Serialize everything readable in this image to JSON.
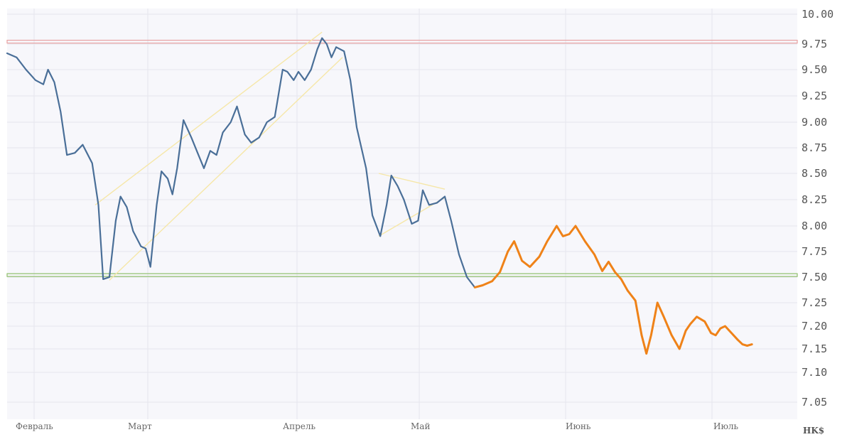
{
  "chart_data": {
    "type": "line",
    "unit_label": "HK$",
    "ylim": [
      7.05,
      10.0
    ],
    "y_ticks": [
      {
        "label": "10.00",
        "value": 10.0
      },
      {
        "label": "9.75",
        "value": 9.75
      },
      {
        "label": "9.50",
        "value": 9.5
      },
      {
        "label": "9.25",
        "value": 9.25
      },
      {
        "label": "9.00",
        "value": 9.0
      },
      {
        "label": "8.75",
        "value": 8.75
      },
      {
        "label": "8.50",
        "value": 8.5
      },
      {
        "label": "8.25",
        "value": 8.25
      },
      {
        "label": "8.00",
        "value": 8.0
      },
      {
        "label": "7.75",
        "value": 7.75
      },
      {
        "label": "7.50",
        "value": 7.5
      },
      {
        "label": "7.25",
        "value": 7.25
      },
      {
        "label": "7.20",
        "value": 7.2
      },
      {
        "label": "7.15",
        "value": 7.15
      },
      {
        "label": "7.10",
        "value": 7.1
      },
      {
        "label": "7.05",
        "value": 7.05
      }
    ],
    "x_ticks": [
      "Февраль",
      "Март",
      "Апрель",
      "Май",
      "Июнь",
      "Июль"
    ],
    "grid": true,
    "colors": {
      "historical": "#4a6f98",
      "forecast": "#ef8218",
      "resistance": "#e8a0a0",
      "support": "#8fbf6a",
      "channel": "#f6e7a8",
      "grid": "#e6e6ee",
      "background": "#f7f7fb"
    },
    "resistance_level": 9.77,
    "support_level": 7.52,
    "series": [
      {
        "role": "historical",
        "points": [
          [
            0.0,
            9.66
          ],
          [
            1.2,
            9.62
          ],
          [
            2.4,
            9.5
          ],
          [
            3.6,
            9.4
          ],
          [
            4.6,
            9.36
          ],
          [
            5.2,
            9.5
          ],
          [
            6.0,
            9.38
          ],
          [
            6.8,
            9.1
          ],
          [
            7.6,
            8.68
          ],
          [
            8.6,
            8.7
          ],
          [
            9.6,
            8.78
          ],
          [
            10.8,
            8.6
          ],
          [
            11.6,
            8.2
          ],
          [
            12.2,
            7.48
          ],
          [
            13.0,
            7.5
          ],
          [
            13.8,
            8.05
          ],
          [
            14.4,
            8.28
          ],
          [
            15.2,
            8.18
          ],
          [
            16.0,
            7.95
          ],
          [
            17.0,
            7.8
          ],
          [
            17.6,
            7.78
          ],
          [
            18.2,
            7.6
          ],
          [
            19.0,
            8.2
          ],
          [
            19.6,
            8.52
          ],
          [
            20.4,
            8.45
          ],
          [
            21.0,
            8.3
          ],
          [
            21.6,
            8.55
          ],
          [
            22.4,
            9.02
          ],
          [
            23.4,
            8.85
          ],
          [
            24.2,
            8.7
          ],
          [
            25.0,
            8.55
          ],
          [
            25.8,
            8.72
          ],
          [
            26.6,
            8.68
          ],
          [
            27.4,
            8.9
          ],
          [
            28.4,
            9.0
          ],
          [
            29.2,
            9.15
          ],
          [
            30.2,
            8.88
          ],
          [
            31.0,
            8.8
          ],
          [
            32.0,
            8.85
          ],
          [
            33.0,
            9.0
          ],
          [
            34.0,
            9.05
          ],
          [
            35.0,
            9.5
          ],
          [
            35.6,
            9.48
          ],
          [
            36.4,
            9.4
          ],
          [
            37.0,
            9.48
          ],
          [
            37.8,
            9.4
          ],
          [
            38.6,
            9.5
          ],
          [
            39.4,
            9.7
          ],
          [
            40.0,
            9.8
          ],
          [
            40.6,
            9.75
          ],
          [
            41.2,
            9.62
          ],
          [
            41.8,
            9.72
          ],
          [
            42.8,
            9.68
          ],
          [
            43.6,
            9.4
          ],
          [
            44.4,
            8.95
          ],
          [
            45.6,
            8.55
          ],
          [
            46.4,
            8.1
          ],
          [
            47.4,
            7.9
          ],
          [
            48.2,
            8.2
          ],
          [
            48.8,
            8.48
          ],
          [
            49.6,
            8.38
          ],
          [
            50.4,
            8.25
          ],
          [
            51.4,
            8.02
          ],
          [
            52.2,
            8.05
          ],
          [
            52.8,
            8.34
          ],
          [
            53.6,
            8.2
          ],
          [
            54.6,
            8.22
          ],
          [
            55.6,
            8.28
          ],
          [
            56.4,
            8.05
          ],
          [
            57.4,
            7.72
          ],
          [
            58.4,
            7.5
          ],
          [
            59.4,
            7.4
          ]
        ]
      },
      {
        "role": "forecast",
        "points": [
          [
            59.4,
            7.4
          ],
          [
            60.4,
            7.42
          ],
          [
            61.6,
            7.46
          ],
          [
            62.6,
            7.55
          ],
          [
            63.6,
            7.75
          ],
          [
            64.4,
            7.85
          ],
          [
            65.4,
            7.66
          ],
          [
            66.4,
            7.6
          ],
          [
            67.6,
            7.7
          ],
          [
            68.6,
            7.85
          ],
          [
            69.8,
            8.0
          ],
          [
            70.6,
            7.9
          ],
          [
            71.4,
            7.92
          ],
          [
            72.2,
            8.0
          ],
          [
            73.4,
            7.85
          ],
          [
            74.6,
            7.72
          ],
          [
            75.6,
            7.56
          ],
          [
            76.4,
            7.65
          ],
          [
            77.2,
            7.55
          ],
          [
            78.0,
            7.48
          ],
          [
            78.8,
            7.37
          ],
          [
            79.8,
            7.27
          ],
          [
            80.6,
            7.18
          ],
          [
            81.2,
            7.14
          ],
          [
            81.8,
            7.18
          ],
          [
            82.6,
            7.25
          ],
          [
            83.4,
            7.22
          ],
          [
            84.4,
            7.18
          ],
          [
            85.4,
            7.15
          ],
          [
            86.2,
            7.19
          ],
          [
            86.8,
            7.205
          ],
          [
            87.6,
            7.22
          ],
          [
            88.6,
            7.21
          ],
          [
            89.4,
            7.185
          ],
          [
            90.0,
            7.18
          ],
          [
            90.6,
            7.195
          ],
          [
            91.2,
            7.2
          ],
          [
            92.0,
            7.185
          ],
          [
            92.8,
            7.17
          ],
          [
            93.4,
            7.16
          ],
          [
            94.0,
            7.157
          ],
          [
            94.6,
            7.16
          ]
        ]
      }
    ],
    "channel_lines": [
      [
        [
          11.2,
          8.2
        ],
        [
          40.0,
          9.85
        ]
      ],
      [
        [
          13.0,
          7.47
        ],
        [
          42.6,
          9.62
        ]
      ],
      [
        [
          47.2,
          8.5
        ],
        [
          55.6,
          8.35
        ]
      ],
      [
        [
          47.2,
          7.9
        ],
        [
          55.6,
          8.27
        ]
      ]
    ]
  }
}
